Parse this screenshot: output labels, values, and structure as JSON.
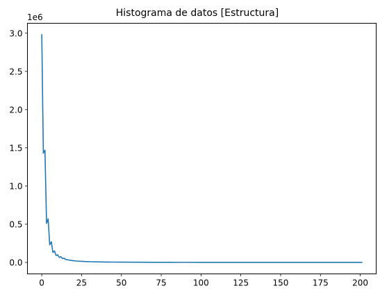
{
  "chart_data": {
    "type": "line",
    "title": "Histograma de datos [Estructura]",
    "xlabel": "",
    "ylabel": "",
    "y_scale_label": "1e6",
    "xlim": [
      -9,
      210
    ],
    "ylim": [
      -150000,
      3130000
    ],
    "x_ticks": [
      0,
      25,
      50,
      75,
      100,
      125,
      150,
      175,
      200
    ],
    "x_tick_labels": [
      "0",
      "25",
      "50",
      "75",
      "100",
      "125",
      "150",
      "175",
      "200"
    ],
    "y_ticks": [
      0,
      500000,
      1000000,
      1500000,
      2000000,
      2500000,
      3000000
    ],
    "y_tick_labels": [
      "0.0",
      "0.5",
      "1.0",
      "1.5",
      "2.0",
      "2.5",
      "3.0"
    ],
    "grid": false,
    "series": [
      {
        "color": "#1f77b4",
        "x": [
          0,
          1,
          2,
          3,
          4,
          5,
          6,
          7,
          8,
          9,
          10,
          11,
          12,
          13,
          14,
          15,
          16,
          18,
          20,
          22,
          25,
          28,
          31,
          35,
          40,
          45,
          50,
          60,
          70,
          80,
          90,
          100,
          120,
          140,
          160,
          180,
          201
        ],
        "y": [
          2980000,
          1430000,
          1470000,
          510000,
          570000,
          230000,
          270000,
          130000,
          150000,
          90000,
          100000,
          65000,
          75000,
          50000,
          55000,
          40000,
          35000,
          28000,
          22000,
          18000,
          14000,
          11000,
          9000,
          7000,
          5500,
          4500,
          3500,
          2500,
          1800,
          1300,
          1000,
          800,
          600,
          450,
          350,
          300,
          250
        ]
      }
    ]
  }
}
